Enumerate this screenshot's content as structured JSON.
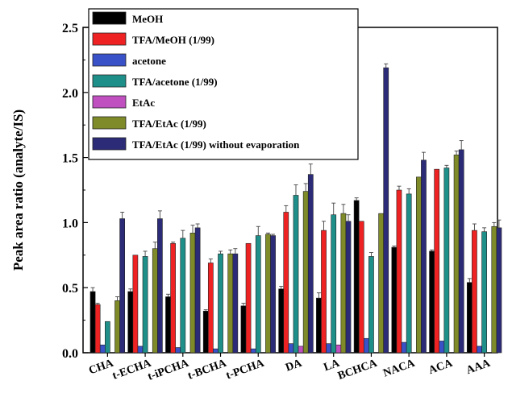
{
  "chart_data": {
    "type": "bar",
    "ylabel": "Peak area ratio (analyte/IS)",
    "xlabel": "",
    "ylim": [
      0,
      2.5
    ],
    "yticks": [
      "0.0",
      "0.5",
      "1.0",
      "1.5",
      "2.0",
      "2.5"
    ],
    "ytick_values": [
      0,
      0.5,
      1.0,
      1.5,
      2.0,
      2.5
    ],
    "grid": false,
    "legend_position": "top-left",
    "categories": [
      "CHA",
      "t-ECHA",
      "t-iPCHA",
      "t-BCHA",
      "t-PCHA",
      "DA",
      "LA",
      "BCHCA",
      "NACA",
      "ACA",
      "AAA"
    ],
    "series": [
      {
        "name": "MeOH",
        "color": "#000000",
        "values": [
          0.47,
          0.47,
          0.43,
          0.32,
          0.36,
          0.49,
          0.42,
          1.17,
          0.81,
          0.78,
          0.54
        ],
        "errors": [
          0.03,
          0.02,
          0.02,
          0.01,
          0.02,
          0.02,
          0.04,
          0.02,
          0.01,
          0.01,
          0.03
        ]
      },
      {
        "name": "TFA/MeOH (1/99)",
        "color": "#ee2222",
        "values": [
          0.37,
          0.75,
          0.84,
          0.69,
          0.84,
          1.08,
          0.94,
          1.01,
          1.25,
          1.41,
          0.94
        ],
        "errors": [
          0.01,
          0.0,
          0.01,
          0.03,
          0.0,
          0.05,
          0.07,
          0.0,
          0.03,
          0.0,
          0.05
        ]
      },
      {
        "name": "acetone",
        "color": "#3a52c8",
        "values": [
          0.06,
          0.05,
          0.04,
          0.03,
          0.03,
          0.07,
          0.07,
          0.11,
          0.08,
          0.09,
          0.05
        ],
        "errors": [
          0.0,
          0.0,
          0.0,
          0.0,
          0.0,
          0.0,
          0.0,
          0.0,
          0.0,
          0.0,
          0.0
        ]
      },
      {
        "name": "TFA/acetone (1/99)",
        "color": "#1f8f8a",
        "values": [
          0.24,
          0.74,
          0.88,
          0.76,
          0.9,
          1.21,
          1.06,
          0.74,
          1.22,
          1.42,
          0.93
        ],
        "errors": [
          0.0,
          0.04,
          0.06,
          0.02,
          0.07,
          0.08,
          0.09,
          0.03,
          0.04,
          0.02,
          0.03
        ]
      },
      {
        "name": "EtAc",
        "color": "#c050c0",
        "values": [
          0.0,
          0.0,
          0.0,
          0.0,
          0.0,
          0.05,
          0.06,
          0.0,
          0.0,
          0.0,
          0.0
        ],
        "errors": [
          0.0,
          0.0,
          0.0,
          0.0,
          0.0,
          0.0,
          0.0,
          0.0,
          0.0,
          0.0,
          0.0
        ]
      },
      {
        "name": "TFA/EtAc (1/99)",
        "color": "#7f8a28",
        "values": [
          0.4,
          0.8,
          0.92,
          0.76,
          0.91,
          1.24,
          1.07,
          1.07,
          1.35,
          1.52,
          0.97
        ],
        "errors": [
          0.03,
          0.05,
          0.06,
          0.03,
          0.01,
          0.06,
          0.07,
          0.0,
          0.0,
          0.03,
          0.03
        ]
      },
      {
        "name": "TFA/EtAc (1/99) without evaporation",
        "color": "#2b2b78",
        "values": [
          1.03,
          1.03,
          0.96,
          0.76,
          0.9,
          1.37,
          1.01,
          2.19,
          1.48,
          1.56,
          0.96
        ],
        "errors": [
          0.05,
          0.06,
          0.03,
          0.04,
          0.01,
          0.08,
          0.05,
          0.03,
          0.06,
          0.07,
          0.06
        ]
      }
    ]
  }
}
